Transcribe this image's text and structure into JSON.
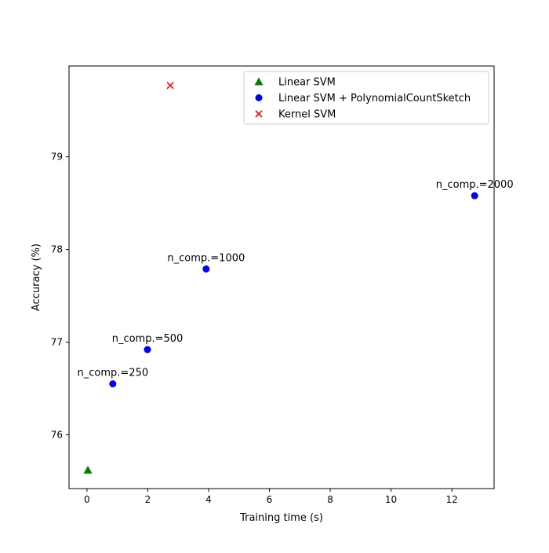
{
  "chart_data": {
    "type": "scatter",
    "title": "",
    "xlabel": "Training time (s)",
    "ylabel": "Accuracy (%)",
    "xlim": [
      -0.59,
      13.39
    ],
    "ylim": [
      75.42,
      79.98
    ],
    "xticks": [
      0,
      2,
      4,
      6,
      8,
      10,
      12
    ],
    "yticks": [
      76,
      77,
      78,
      79
    ],
    "grid": false,
    "legend_position": "top-right",
    "series": [
      {
        "name": "Linear SVM",
        "marker": "triangle",
        "color": "#008000",
        "points": [
          {
            "x": 0.03,
            "y": 75.62
          }
        ]
      },
      {
        "name": "Linear SVM + PolynomialCountSketch",
        "marker": "circle",
        "color": "#0000ff",
        "points": [
          {
            "x": 0.85,
            "y": 76.55,
            "label": "n_comp.=250"
          },
          {
            "x": 1.99,
            "y": 76.92,
            "label": "n_comp.=500"
          },
          {
            "x": 3.92,
            "y": 77.79,
            "label": "n_comp.=1000"
          },
          {
            "x": 12.75,
            "y": 78.58,
            "label": "n_comp.=2000"
          }
        ]
      },
      {
        "name": "Kernel SVM",
        "marker": "x",
        "color": "#ff0000",
        "points": [
          {
            "x": 2.74,
            "y": 79.77
          }
        ]
      }
    ]
  }
}
